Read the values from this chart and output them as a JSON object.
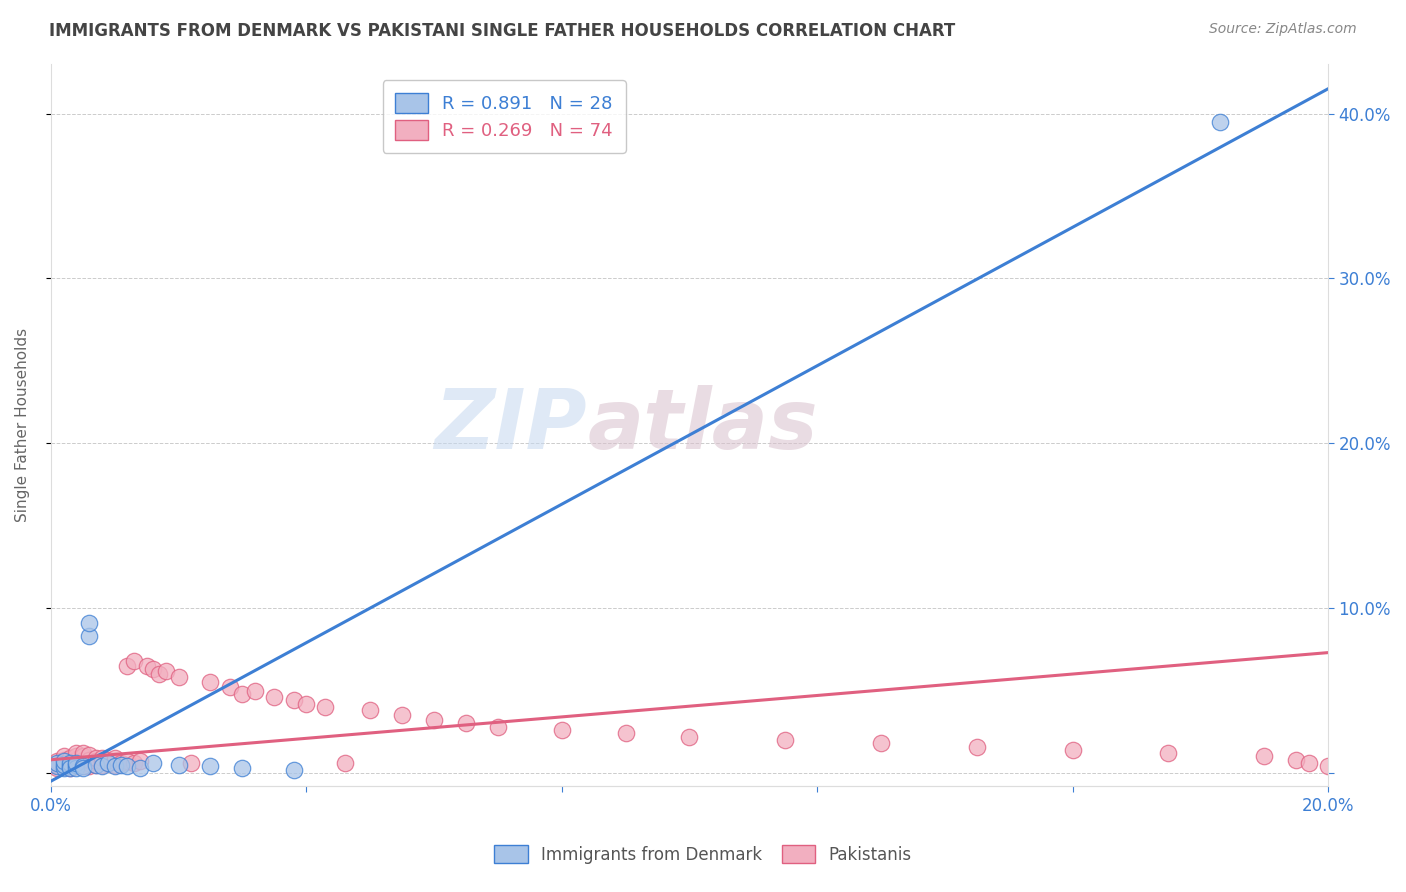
{
  "title": "IMMIGRANTS FROM DENMARK VS PAKISTANI SINGLE FATHER HOUSEHOLDS CORRELATION CHART",
  "source": "Source: ZipAtlas.com",
  "ylabel": "Single Father Households",
  "xlim": [
    0.0,
    0.2
  ],
  "ylim": [
    -0.008,
    0.43
  ],
  "legend_blue_r": "R = 0.891",
  "legend_blue_n": "N = 28",
  "legend_pink_r": "R = 0.269",
  "legend_pink_n": "N = 74",
  "blue_color": "#a8c4e8",
  "pink_color": "#f2afc0",
  "blue_line_color": "#3d7fd4",
  "pink_line_color": "#e06080",
  "watermark": "ZIPatlas",
  "blue_trend_x": [
    0.0,
    0.2
  ],
  "blue_trend_y": [
    -0.005,
    0.415
  ],
  "pink_trend_x": [
    0.0,
    0.2
  ],
  "pink_trend_y": [
    0.008,
    0.073
  ],
  "blue_scatter_x": [
    0.001,
    0.001,
    0.002,
    0.002,
    0.002,
    0.003,
    0.003,
    0.003,
    0.004,
    0.004,
    0.004,
    0.005,
    0.005,
    0.006,
    0.006,
    0.007,
    0.008,
    0.009,
    0.01,
    0.011,
    0.012,
    0.014,
    0.016,
    0.02,
    0.025,
    0.03,
    0.038,
    0.183
  ],
  "blue_scatter_y": [
    0.004,
    0.006,
    0.003,
    0.005,
    0.007,
    0.004,
    0.006,
    0.003,
    0.005,
    0.003,
    0.006,
    0.004,
    0.003,
    0.083,
    0.091,
    0.005,
    0.004,
    0.006,
    0.004,
    0.005,
    0.004,
    0.003,
    0.006,
    0.005,
    0.004,
    0.003,
    0.002,
    0.395
  ],
  "pink_scatter_x": [
    0.001,
    0.001,
    0.001,
    0.002,
    0.002,
    0.002,
    0.002,
    0.003,
    0.003,
    0.003,
    0.003,
    0.004,
    0.004,
    0.004,
    0.004,
    0.004,
    0.005,
    0.005,
    0.005,
    0.005,
    0.005,
    0.006,
    0.006,
    0.006,
    0.006,
    0.007,
    0.007,
    0.007,
    0.008,
    0.008,
    0.008,
    0.009,
    0.009,
    0.01,
    0.01,
    0.01,
    0.011,
    0.012,
    0.012,
    0.013,
    0.013,
    0.014,
    0.015,
    0.016,
    0.017,
    0.018,
    0.02,
    0.022,
    0.025,
    0.028,
    0.03,
    0.032,
    0.035,
    0.038,
    0.04,
    0.043,
    0.046,
    0.05,
    0.055,
    0.06,
    0.065,
    0.07,
    0.08,
    0.09,
    0.1,
    0.115,
    0.13,
    0.145,
    0.16,
    0.175,
    0.19,
    0.195,
    0.197,
    0.2
  ],
  "pink_scatter_y": [
    0.003,
    0.005,
    0.007,
    0.004,
    0.006,
    0.008,
    0.01,
    0.003,
    0.005,
    0.007,
    0.009,
    0.004,
    0.006,
    0.008,
    0.01,
    0.012,
    0.004,
    0.006,
    0.008,
    0.01,
    0.012,
    0.004,
    0.006,
    0.008,
    0.011,
    0.005,
    0.007,
    0.009,
    0.005,
    0.007,
    0.009,
    0.006,
    0.008,
    0.005,
    0.007,
    0.009,
    0.006,
    0.007,
    0.065,
    0.006,
    0.068,
    0.007,
    0.065,
    0.063,
    0.06,
    0.062,
    0.058,
    0.006,
    0.055,
    0.052,
    0.048,
    0.05,
    0.046,
    0.044,
    0.042,
    0.04,
    0.006,
    0.038,
    0.035,
    0.032,
    0.03,
    0.028,
    0.026,
    0.024,
    0.022,
    0.02,
    0.018,
    0.016,
    0.014,
    0.012,
    0.01,
    0.008,
    0.006,
    0.004
  ],
  "background_color": "#ffffff",
  "grid_color": "#cccccc",
  "title_color": "#444444",
  "axis_color": "#3d7fd4"
}
